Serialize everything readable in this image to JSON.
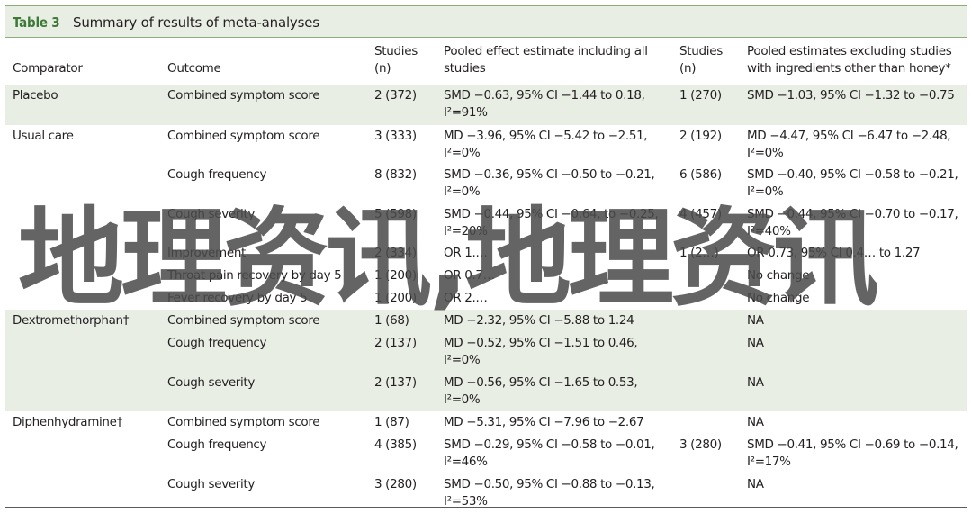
{
  "table": {
    "label": "Table 3",
    "title": "Summary of results of meta-analyses",
    "columns": {
      "comparator": "Comparator",
      "outcome": "Outcome",
      "studies_all_1": "Studies",
      "studies_all_2": "(n)",
      "pooled_all_1": "Pooled effect estimate including all",
      "pooled_all_2": "studies",
      "studies_excl_1": "Studies",
      "studies_excl_2": "(n)",
      "pooled_excl_1": "Pooled estimates excluding studies",
      "pooled_excl_2": "with ingredients other than honey*"
    },
    "rows": [
      {
        "comparator": "Placebo",
        "outcome": "Combined symptom score",
        "studies": "2 (372)",
        "pooled_1": "SMD −0.63, 95% CI −1.44 to 0.18,",
        "pooled_2": "I²=91%",
        "studies_excl": "1 (270)",
        "pooled_excl_1": "SMD −1.03, 95% CI −1.32 to −0.75",
        "pooled_excl_2": ""
      },
      {
        "comparator": "Usual care",
        "outcome": "Combined symptom score",
        "studies": "3 (333)",
        "pooled_1": "MD −3.96, 95% CI −5.42 to −2.51,",
        "pooled_2": "I²=0%",
        "studies_excl": "2 (192)",
        "pooled_excl_1": "MD −4.47, 95% CI −6.47 to −2.48,",
        "pooled_excl_2": "I²=0%"
      },
      {
        "comparator": "",
        "outcome": "Cough frequency",
        "studies": "8 (832)",
        "pooled_1": "SMD −0.36, 95% CI −0.50 to −0.21,",
        "pooled_2": "I²=0%",
        "studies_excl": "6 (586)",
        "pooled_excl_1": "SMD −0.40, 95% CI −0.58 to −0.21,",
        "pooled_excl_2": "I²=0%"
      },
      {
        "comparator": "",
        "outcome": "Cough severity",
        "studies": "5 (598)",
        "pooled_1": "SMD −0.44, 95% CI −0.64, to −0.25,",
        "pooled_2": "I²=20%",
        "studies_excl": "4 (457)",
        "pooled_excl_1": "SMD −0.44, 95% CI −0.70 to −0.17,",
        "pooled_excl_2": "I²=40%"
      },
      {
        "comparator": "",
        "outcome": "Improvement",
        "studies": "2 (334)",
        "pooled_1": "OR 1.…",
        "pooled_2": "",
        "studies_excl": "1 (2…)",
        "pooled_excl_1": "OR 0.73, 95% CI 0.4… to 1.27",
        "pooled_excl_2": ""
      },
      {
        "comparator": "",
        "outcome": "Throat pain recovery by day 5",
        "studies": "1 (200)",
        "pooled_1": "OR 0.7…",
        "pooled_2": "",
        "studies_excl": "",
        "pooled_excl_1": "No change",
        "pooled_excl_2": ""
      },
      {
        "comparator": "",
        "outcome": "Fever recovery by day 5",
        "studies": "1 (200)",
        "pooled_1": "OR 2.…",
        "pooled_2": "",
        "studies_excl": "",
        "pooled_excl_1": "No change",
        "pooled_excl_2": ""
      },
      {
        "comparator": "Dextromethorphan†",
        "outcome": "Combined symptom score",
        "studies": "1 (68)",
        "pooled_1": "MD −2.32, 95% CI −5.88 to 1.24",
        "pooled_2": "",
        "studies_excl": "",
        "pooled_excl_1": "NA",
        "pooled_excl_2": ""
      },
      {
        "comparator": "",
        "outcome": "Cough frequency",
        "studies": "2 (137)",
        "pooled_1": "MD −0.52, 95% CI −1.51 to 0.46,",
        "pooled_2": "I²=0%",
        "studies_excl": "",
        "pooled_excl_1": "NA",
        "pooled_excl_2": ""
      },
      {
        "comparator": "",
        "outcome": "Cough severity",
        "studies": "2 (137)",
        "pooled_1": "MD −0.56, 95% CI −1.65 to 0.53,",
        "pooled_2": "I²=0%",
        "studies_excl": "",
        "pooled_excl_1": "NA",
        "pooled_excl_2": ""
      },
      {
        "comparator": "Diphenhydramine†",
        "outcome": "Combined symptom score",
        "studies": "1 (87)",
        "pooled_1": "MD −5.31, 95% CI −7.96 to −2.67",
        "pooled_2": "",
        "studies_excl": "",
        "pooled_excl_1": "NA",
        "pooled_excl_2": ""
      },
      {
        "comparator": "",
        "outcome": "Cough frequency",
        "studies": "4 (385)",
        "pooled_1": "SMD −0.29, 95% CI −0.58 to −0.01,",
        "pooled_2": "I²=46%",
        "studies_excl": "3 (280)",
        "pooled_excl_1": "SMD −0.41, 95% CI −0.69 to −0.14,",
        "pooled_excl_2": "I²=17%"
      },
      {
        "comparator": "",
        "outcome": "Cough severity",
        "studies": "3 (280)",
        "pooled_1": "SMD −0.50, 95% CI −0.88 to −0.13,",
        "pooled_2": "I²=53%",
        "studies_excl": "",
        "pooled_excl_1": "NA",
        "pooled_excl_2": ""
      }
    ]
  },
  "watermark": "地理资讯,地理资讯"
}
